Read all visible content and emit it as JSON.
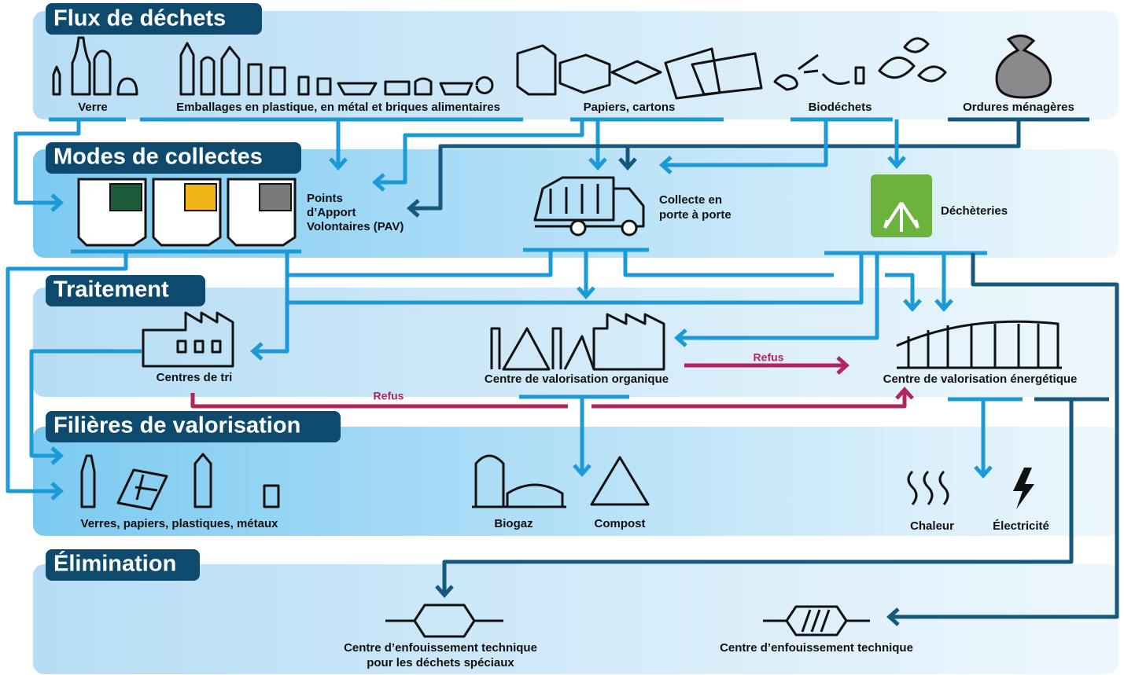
{
  "sections": [
    {
      "title": "Flux de déchets",
      "items": [
        {
          "lines": [
            "Verre"
          ]
        },
        {
          "lines": [
            "Emballages en plastique, en métal et briques alimentaires"
          ]
        },
        {
          "lines": [
            "Papiers, cartons"
          ]
        },
        {
          "lines": [
            "Biodéchets"
          ]
        },
        {
          "lines": [
            "Ordures ménagères"
          ]
        }
      ]
    },
    {
      "title": "Modes de collectes",
      "items": [
        {
          "lines": [
            "Points",
            "d’Apport",
            "Volontaires (PAV)"
          ]
        },
        {
          "lines": [
            "Collecte en",
            "porte à porte"
          ]
        },
        {
          "lines": [
            "Déchèteries"
          ]
        }
      ]
    },
    {
      "title": "Traitement",
      "items": [
        {
          "lines": [
            "Centres de tri"
          ]
        },
        {
          "lines": [
            "Centre de valorisation organique"
          ]
        },
        {
          "lines": [
            "Centre de valorisation énergétique"
          ]
        }
      ]
    },
    {
      "title": "Filières de valorisation",
      "items": [
        {
          "lines": [
            "Verres, papiers, plastiques, métaux"
          ]
        },
        {
          "lines": [
            "Biogaz"
          ]
        },
        {
          "lines": [
            "Compost"
          ]
        },
        {
          "lines": [
            "Chaleur"
          ]
        },
        {
          "lines": [
            "Électricité"
          ]
        }
      ]
    },
    {
      "title": "Élimination",
      "items": [
        {
          "lines": [
            "Centre d’enfouissement technique",
            "pour les déchets spéciaux"
          ]
        },
        {
          "lines": [
            "Centre d’enfouissement technique"
          ]
        }
      ]
    }
  ],
  "rejects": [
    "Refus",
    "Refus"
  ]
}
